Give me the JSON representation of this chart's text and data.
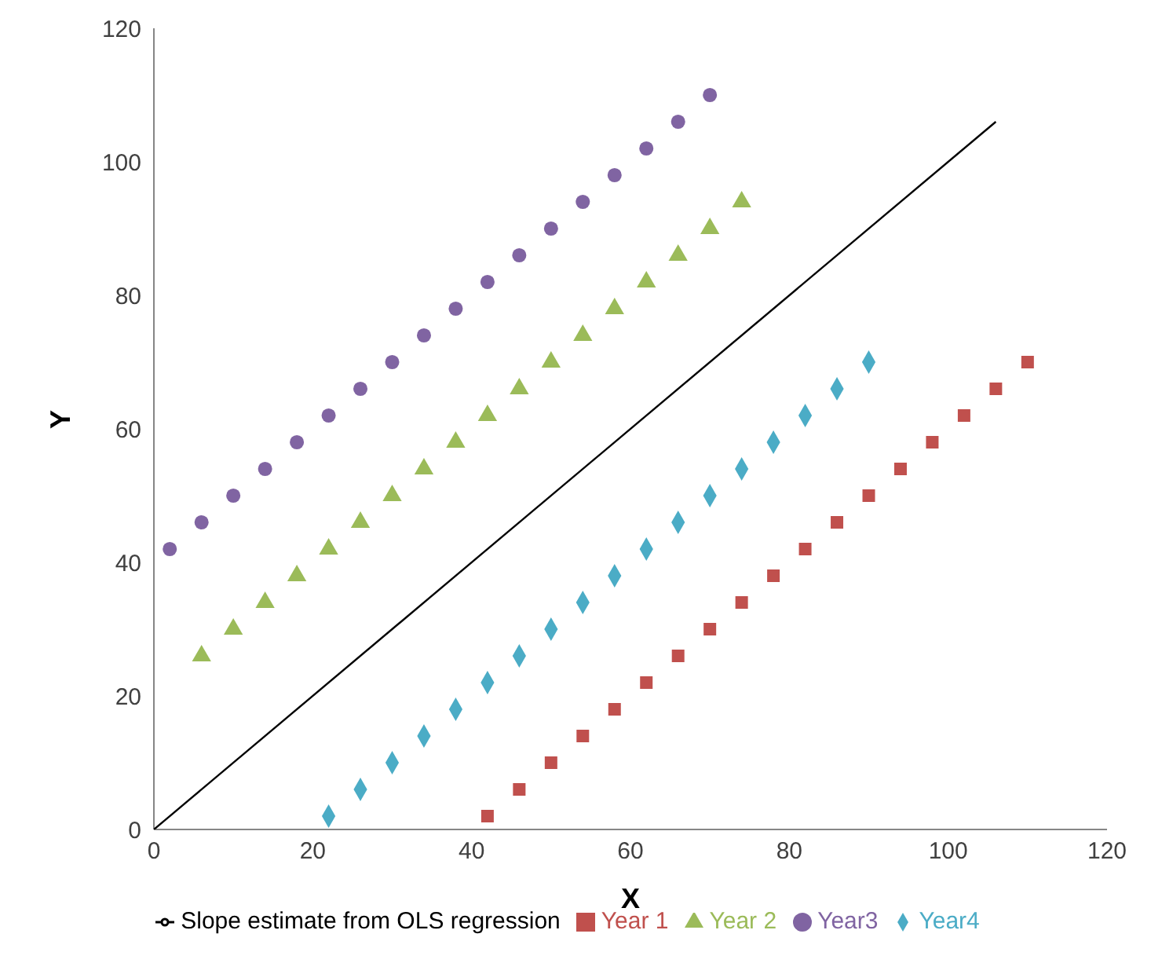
{
  "chart_data": {
    "type": "scatter",
    "xlabel": "X",
    "ylabel": "Y",
    "xlim": [
      0,
      120
    ],
    "xticks": [
      0,
      20,
      40,
      60,
      80,
      100,
      120
    ],
    "ylim": [
      0,
      120
    ],
    "yticks": [
      0,
      20,
      40,
      60,
      80,
      100,
      120
    ],
    "grid": false,
    "legend": "bottom",
    "series": [
      {
        "name": "Year 1",
        "color": "#c0504d",
        "marker": "square",
        "x": [
          42,
          46,
          50,
          54,
          58,
          62,
          66,
          70,
          74,
          78,
          82,
          86,
          90,
          94,
          98,
          102,
          106,
          110
        ],
        "values": [
          2,
          6,
          10,
          14,
          18,
          22,
          26,
          30,
          34,
          38,
          42,
          46,
          50,
          54,
          58,
          62,
          66,
          70
        ]
      },
      {
        "name": "Year 2",
        "color": "#9bbb59",
        "marker": "triangle",
        "x": [
          6,
          10,
          14,
          18,
          22,
          26,
          30,
          34,
          38,
          42,
          46,
          50,
          54,
          58,
          62,
          66,
          70,
          74
        ],
        "values": [
          26,
          30,
          34,
          38,
          42,
          46,
          50,
          54,
          58,
          62,
          66,
          70,
          74,
          78,
          82,
          86,
          90,
          94
        ]
      },
      {
        "name": "Year3",
        "color": "#8064a2",
        "marker": "circle",
        "x": [
          2,
          6,
          10,
          14,
          18,
          22,
          26,
          30,
          34,
          38,
          42,
          46,
          50,
          54,
          58,
          62,
          66,
          70
        ],
        "values": [
          42,
          46,
          50,
          54,
          58,
          62,
          66,
          70,
          74,
          78,
          82,
          86,
          90,
          94,
          98,
          102,
          106,
          110
        ]
      },
      {
        "name": "Year4",
        "color": "#4bacc6",
        "marker": "diamond",
        "x": [
          22,
          26,
          30,
          34,
          38,
          42,
          46,
          50,
          54,
          58,
          62,
          66,
          70,
          74,
          78,
          82,
          86,
          90
        ],
        "values": [
          2,
          6,
          10,
          14,
          18,
          22,
          26,
          30,
          34,
          38,
          42,
          46,
          50,
          54,
          58,
          62,
          66,
          70
        ]
      },
      {
        "name": "Slope estimate from OLS regression",
        "type": "line",
        "color": "#000000",
        "marker": "none",
        "line_style": "solid",
        "x": [
          0,
          106
        ],
        "values": [
          0,
          106
        ]
      }
    ]
  }
}
